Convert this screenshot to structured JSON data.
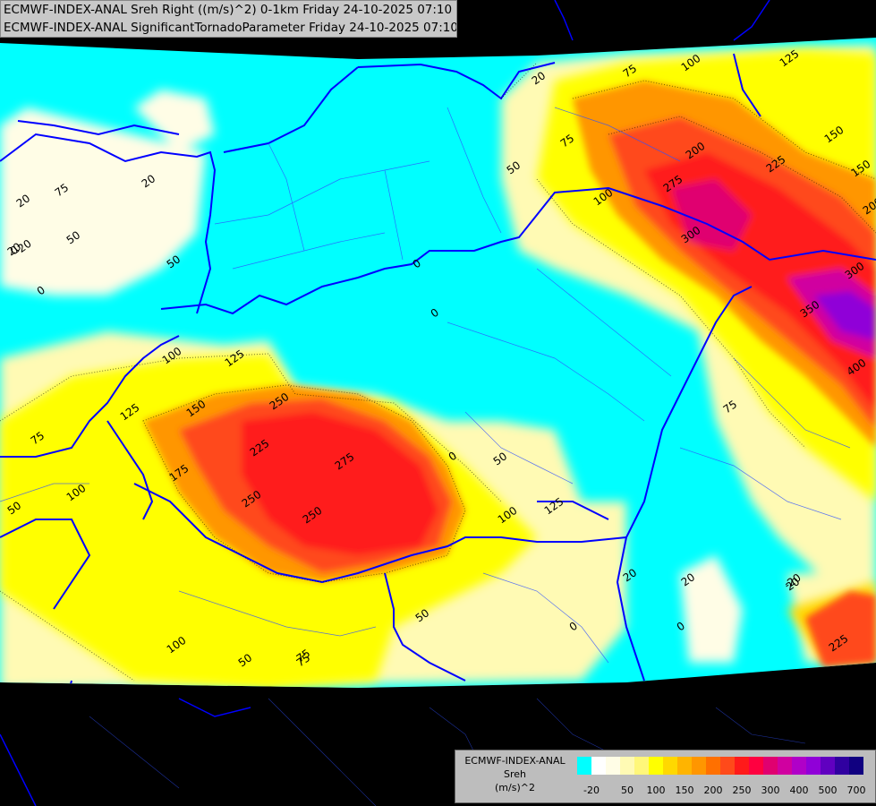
{
  "title": {
    "line1": "ECMWF-INDEX-ANAL Sreh Right ((m/s)^2) 0-1km Friday 24-10-2025 07:10",
    "line2": "ECMWF-INDEX-ANAL SignificantTornadoParameter Friday 24-10-2025 07:10"
  },
  "legend": {
    "line1": "ECMWF-INDEX-ANAL",
    "line2": "Sreh",
    "line3": "(m/s)^2",
    "colors": [
      "#00ffff",
      "#ffffff",
      "#fffde6",
      "#fffab4",
      "#fff77a",
      "#ffff00",
      "#ffd800",
      "#ffb400",
      "#ff9600",
      "#ff7000",
      "#ff4a1a",
      "#ff1a1a",
      "#ff0040",
      "#e00070",
      "#d000a0",
      "#b000c8",
      "#9000d8",
      "#6000c0",
      "#3000a0",
      "#100080"
    ],
    "ticks": [
      "-20",
      "50",
      "100",
      "150",
      "200",
      "250",
      "300",
      "400",
      "500",
      "700"
    ]
  },
  "contour_labels": [
    "20",
    "20",
    "20",
    "20",
    "20",
    "20",
    "20",
    "0",
    "0",
    "0",
    "0",
    "0",
    "0",
    "0",
    "-20",
    "-20",
    "50",
    "50",
    "50",
    "50",
    "50",
    "50",
    "50",
    "75",
    "75",
    "75",
    "75",
    "75",
    "75",
    "75",
    "100",
    "100",
    "100",
    "100",
    "100",
    "100",
    "125",
    "125",
    "125",
    "125",
    "150",
    "150",
    "150",
    "175",
    "200",
    "200",
    "225",
    "225",
    "225",
    "250",
    "250",
    "250",
    "275",
    "275",
    "300",
    "300",
    "350",
    "400"
  ]
}
